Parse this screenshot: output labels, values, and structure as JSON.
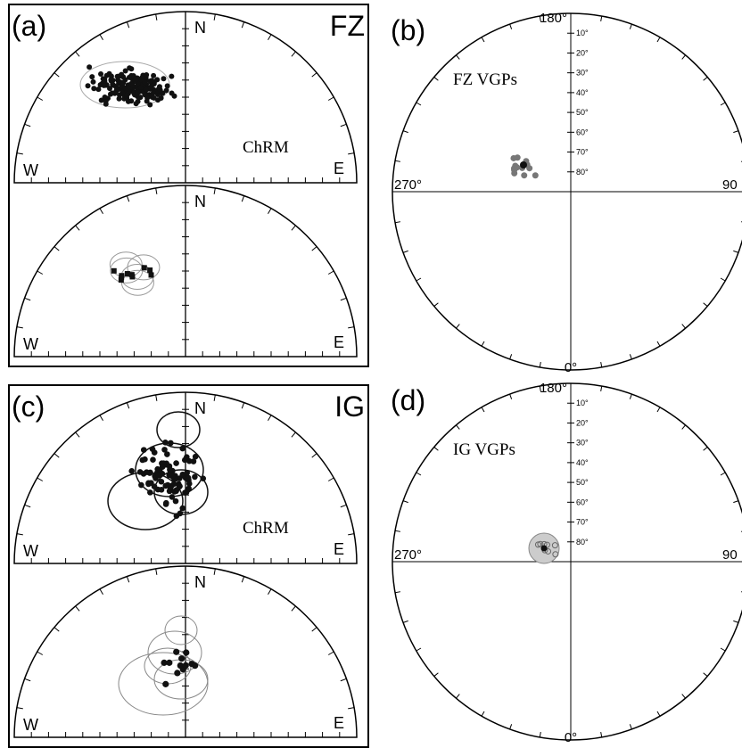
{
  "stereonets": [
    {
      "label": "(a)",
      "tag": "FZ",
      "nets": [
        {
          "north": "N",
          "west": "W",
          "east": "E",
          "note": "ChRM"
        },
        {
          "north": "N",
          "west": "W",
          "east": "E"
        }
      ]
    },
    {
      "label": "(c)",
      "tag": "IG",
      "nets": [
        {
          "north": "N",
          "west": "W",
          "east": "E",
          "note": "ChRM"
        },
        {
          "north": "N",
          "west": "W",
          "east": "E"
        }
      ]
    }
  ],
  "maps": [
    {
      "label": "(b)",
      "title": "FZ VGPs",
      "top": "180°",
      "left": "270°",
      "right": "90",
      "bottom": "0°",
      "latitudes": [
        "10°",
        "20°",
        "30°",
        "40°",
        "50°",
        "60°",
        "70°",
        "80°"
      ]
    },
    {
      "label": "(d)",
      "title": "IG VGPs",
      "top": "180°",
      "left": "270°",
      "right": "90",
      "bottom": "0°",
      "latitudes": [
        "10°",
        "20°",
        "30°",
        "40°",
        "50°",
        "60°",
        "70°",
        "80°"
      ]
    }
  ]
}
